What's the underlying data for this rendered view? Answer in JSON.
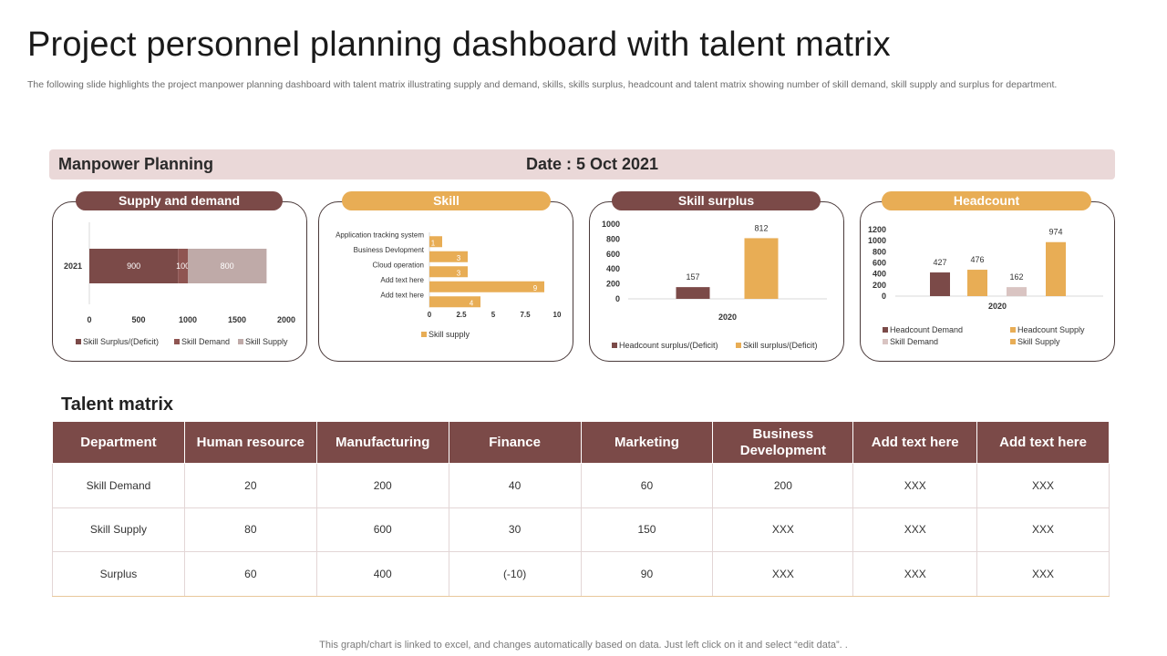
{
  "title": "Project personnel planning dashboard with talent matrix",
  "subtitle": "The following slide highlights the project manpower planning dashboard with talent matrix illustrating supply and demand, skills, skills surplus, headcount and talent matrix showing number of skill demand, skill supply and surplus for department.",
  "banner": {
    "left": "Manpower Planning",
    "right": "Date : 5 Oct 2021"
  },
  "colors": {
    "brown": "#7b4a48",
    "gold": "#e8ad55",
    "rose": "#bfaaa8",
    "dark_brown": "#6e3b39"
  },
  "panels": {
    "supply_demand": "Supply and demand",
    "skill": "Skill",
    "skill_surplus": "Skill surplus",
    "headcount": "Headcount"
  },
  "chart_data": [
    {
      "type": "bar",
      "orientation": "horizontal-stacked",
      "categories": [
        "2021"
      ],
      "series": [
        {
          "name": "Skill Surplus/(Deficit)",
          "values": [
            900
          ],
          "color": "#7b4a48"
        },
        {
          "name": "Skill Demand",
          "values": [
            100
          ],
          "color": "#8f5552"
        },
        {
          "name": "Skill Supply",
          "values": [
            800
          ],
          "color": "#bfaaa8"
        }
      ],
      "xticks": [
        "0",
        "500",
        "1000",
        "1500",
        "2000"
      ],
      "xlim": [
        0,
        2000
      ],
      "legend": "bottom"
    },
    {
      "type": "bar",
      "orientation": "horizontal",
      "categories": [
        "Application tracking system",
        "Business Devlopment",
        "Cloud operation",
        "Add text here",
        "Add text here"
      ],
      "series": [
        {
          "name": "Skill supply",
          "values": [
            1,
            3,
            3,
            9,
            4
          ],
          "color": "#e8ad55"
        }
      ],
      "xticks": [
        "0",
        "2.5",
        "5",
        "7.5",
        "10"
      ],
      "xlim": [
        0,
        10
      ],
      "legend": "bottom"
    },
    {
      "type": "bar",
      "categories": [
        "2020"
      ],
      "series": [
        {
          "name": "Headcount surplus/(Deficit)",
          "values": [
            157
          ],
          "color": "#7b4a48"
        },
        {
          "name": "Skill surplus/(Deficit)",
          "values": [
            812
          ],
          "color": "#e8ad55"
        }
      ],
      "yticks": [
        "0",
        "200",
        "400",
        "600",
        "800",
        "1000"
      ],
      "ylim": [
        0,
        1000
      ],
      "legend": "bottom"
    },
    {
      "type": "bar",
      "categories": [
        "2020"
      ],
      "series": [
        {
          "name": "Headcount Demand",
          "values": [
            427
          ],
          "color": "#7b4a48"
        },
        {
          "name": "Headcount Supply",
          "values": [
            476
          ],
          "color": "#e8ad55"
        },
        {
          "name": "Skill Demand",
          "values": [
            162
          ],
          "color": "#d9c4c2"
        },
        {
          "name": "Skill Supply",
          "values": [
            974
          ],
          "color": "#e8ad55"
        }
      ],
      "yticks": [
        "0",
        "200",
        "400",
        "600",
        "800",
        "1000",
        "1200"
      ],
      "ylim": [
        0,
        1200
      ],
      "legend": "bottom"
    }
  ],
  "talent_matrix": {
    "title": "Talent matrix",
    "headers": [
      "Department",
      "Human resource",
      "Manufacturing",
      "Finance",
      "Marketing",
      "Business Development",
      "Add text here",
      "Add text here"
    ],
    "rows": [
      [
        "Skill Demand",
        "20",
        "200",
        "40",
        "60",
        "200",
        "XXX",
        "XXX"
      ],
      [
        "Skill Supply",
        "80",
        "600",
        "30",
        "150",
        "XXX",
        "XXX",
        "XXX"
      ],
      [
        "Surplus",
        "60",
        "400",
        "(-10)",
        "90",
        "XXX",
        "XXX",
        "XXX"
      ]
    ]
  },
  "footer": "This graph/chart is linked to excel,  and changes automatically based on data. Just left click on it and select “edit data”. ."
}
